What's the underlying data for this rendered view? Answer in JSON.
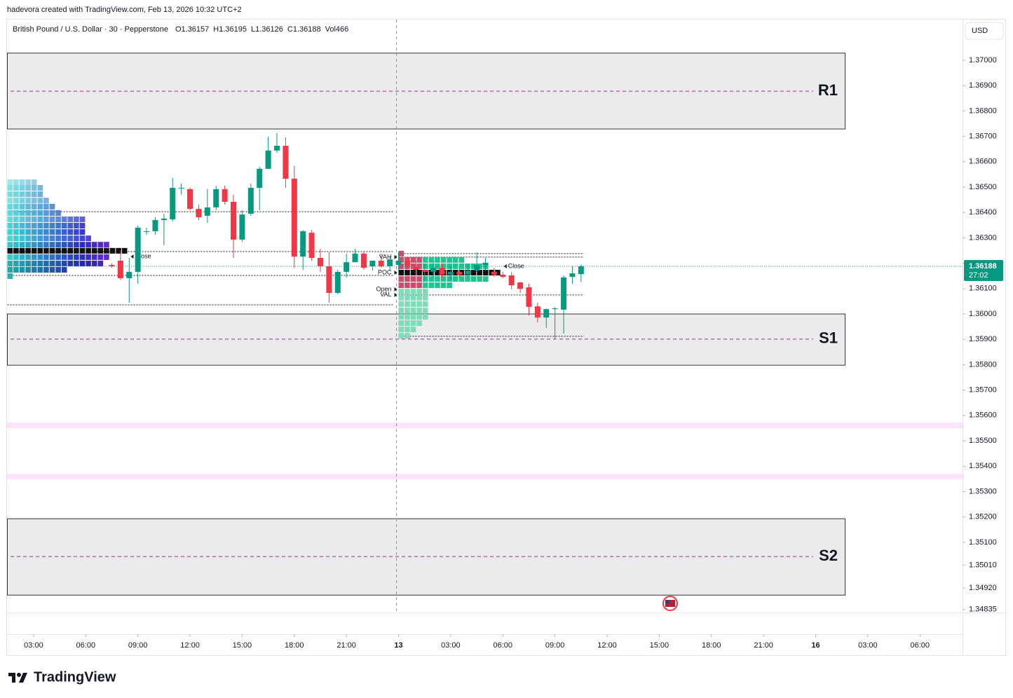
{
  "chart_data": {
    "type": "candlestick",
    "attribution": "hadevora created with TradingView.com, Feb 13, 2026 10:32 UTC+2",
    "title": "British Pound / U.S. Dollar · 30 · Pepperstone",
    "ohlc_labels": [
      "O",
      "H",
      "L",
      "C"
    ],
    "volume_label": "Vol",
    "volume": 466,
    "currency": "USD",
    "countdown": "27:02",
    "brand": "TradingView",
    "up_color": "#089981",
    "down_color": "#f23645",
    "x": [
      9,
      10,
      11,
      12,
      13,
      14,
      15,
      16,
      17,
      18,
      19,
      20,
      21,
      22,
      23,
      24,
      25,
      26,
      27,
      28,
      29,
      30,
      31,
      32,
      33,
      34,
      35,
      36,
      37,
      38,
      39,
      40,
      41,
      42,
      43,
      44,
      45,
      46,
      47,
      48,
      49,
      50,
      51,
      52,
      53,
      54,
      55,
      56,
      57,
      58,
      59,
      60,
      61,
      62,
      63
    ],
    "open": [
      1.36193,
      1.3621,
      1.36141,
      1.36166,
      1.36326,
      1.36326,
      1.3637,
      1.36373,
      1.36497,
      1.36492,
      1.36414,
      1.36387,
      1.3642,
      1.36492,
      1.36442,
      1.36293,
      1.36395,
      1.36497,
      1.36572,
      1.36644,
      1.36663,
      1.36533,
      1.36226,
      1.3632,
      1.36221,
      1.36188,
      1.36083,
      1.36166,
      1.36204,
      1.36238,
      1.36188,
      1.3621,
      1.36188,
      1.36193,
      1.3621,
      1.36188,
      1.36174,
      1.36166,
      1.36182,
      1.36155,
      1.36166,
      1.36155,
      1.36171,
      1.36193,
      1.36166,
      1.36155,
      1.36152,
      1.36124,
      1.36105,
      1.3603,
      1.35986,
      1.36019,
      1.36017,
      1.36146,
      1.36157
    ],
    "high": [
      1.36199,
      1.36249,
      1.36221,
      1.36348,
      1.3634,
      1.36381,
      1.36395,
      1.36536,
      1.36514,
      1.36497,
      1.36431,
      1.36492,
      1.36505,
      1.36505,
      1.3647,
      1.36409,
      1.36514,
      1.3658,
      1.36699,
      1.36713,
      1.36696,
      1.36583,
      1.36331,
      1.36331,
      1.36257,
      1.36243,
      1.36174,
      1.36238,
      1.36257,
      1.36249,
      1.3621,
      1.36238,
      1.36229,
      1.36243,
      1.36226,
      1.3621,
      1.36199,
      1.36202,
      1.36199,
      1.36188,
      1.36182,
      1.36193,
      1.36243,
      1.36221,
      1.36182,
      1.36166,
      1.36166,
      1.36127,
      1.36119,
      1.36044,
      1.36022,
      1.36028,
      1.36152,
      1.36188,
      1.36195
    ],
    "low": [
      1.36182,
      1.36133,
      1.36044,
      1.36119,
      1.36312,
      1.36312,
      1.36271,
      1.36365,
      1.3647,
      1.36409,
      1.3637,
      1.36359,
      1.36409,
      1.36431,
      1.36221,
      1.36284,
      1.36387,
      1.36409,
      1.36572,
      1.36635,
      1.36497,
      1.36182,
      1.36174,
      1.3621,
      1.36166,
      1.36044,
      1.36077,
      1.36144,
      1.36204,
      1.36174,
      1.36171,
      1.36182,
      1.36171,
      1.36174,
      1.36171,
      1.36155,
      1.36133,
      1.36146,
      1.36141,
      1.36133,
      1.36144,
      1.36146,
      1.36166,
      1.36171,
      1.36146,
      1.36141,
      1.36097,
      1.36083,
      1.35994,
      1.35967,
      1.35945,
      1.35901,
      1.35923,
      1.36119,
      1.36126
    ],
    "close": [
      1.36188,
      1.36141,
      1.36166,
      1.3634,
      1.36326,
      1.3637,
      1.36376,
      1.36497,
      1.36497,
      1.36414,
      1.36381,
      1.3642,
      1.36492,
      1.36442,
      1.36293,
      1.36392,
      1.36497,
      1.36572,
      1.36644,
      1.36663,
      1.36533,
      1.36226,
      1.36326,
      1.36221,
      1.36188,
      1.36083,
      1.36166,
      1.36204,
      1.36238,
      1.36182,
      1.3621,
      1.36188,
      1.36215,
      1.3621,
      1.36188,
      1.36174,
      1.36166,
      1.36182,
      1.36155,
      1.36166,
      1.36155,
      1.36171,
      1.36193,
      1.36202,
      1.36155,
      1.36146,
      1.36113,
      1.36099,
      1.36028,
      1.35986,
      1.36019,
      1.36022,
      1.36144,
      1.3616,
      1.36188
    ],
    "xlim": [
      -3.06,
      106.9
    ],
    "xticks": [
      {
        "value": 0,
        "label": "03:00"
      },
      {
        "value": 6,
        "label": "06:00"
      },
      {
        "value": 12,
        "label": "09:00"
      },
      {
        "value": 18,
        "label": "12:00"
      },
      {
        "value": 24,
        "label": "15:00"
      },
      {
        "value": 30,
        "label": "18:00"
      },
      {
        "value": 36,
        "label": "21:00"
      },
      {
        "value": 42,
        "label": "13"
      },
      {
        "value": 48,
        "label": "03:00"
      },
      {
        "value": 54,
        "label": "06:00"
      },
      {
        "value": 60,
        "label": "09:00"
      },
      {
        "value": 66,
        "label": "12:00"
      },
      {
        "value": 72,
        "label": "15:00"
      },
      {
        "value": 78,
        "label": "18:00"
      },
      {
        "value": 84,
        "label": "21:00"
      },
      {
        "value": 90,
        "label": "16"
      },
      {
        "value": 96,
        "label": "03:00"
      },
      {
        "value": 102,
        "label": "06:00"
      }
    ],
    "ylim": [
      1.34829,
      1.3716
    ],
    "yticks": [
      {
        "value": 1.37,
        "label": "1.37000"
      },
      {
        "value": 1.369,
        "label": "1.36900"
      },
      {
        "value": 1.368,
        "label": "1.36800"
      },
      {
        "value": 1.367,
        "label": "1.36700"
      },
      {
        "value": 1.366,
        "label": "1.36600"
      },
      {
        "value": 1.365,
        "label": "1.36500"
      },
      {
        "value": 1.364,
        "label": "1.36400"
      },
      {
        "value": 1.363,
        "label": "1.36300"
      },
      {
        "value": 1.362,
        "label": "1.36200"
      },
      {
        "value": 1.361,
        "label": "1.36100"
      },
      {
        "value": 1.36,
        "label": "1.36000"
      },
      {
        "value": 1.359,
        "label": "1.35900"
      },
      {
        "value": 1.358,
        "label": "1.35800"
      },
      {
        "value": 1.357,
        "label": "1.35700"
      },
      {
        "value": 1.356,
        "label": "1.35600"
      },
      {
        "value": 1.355,
        "label": "1.35500"
      },
      {
        "value": 1.354,
        "label": "1.35400"
      },
      {
        "value": 1.353,
        "label": "1.35300"
      },
      {
        "value": 1.352,
        "label": "1.35200"
      },
      {
        "value": 1.351,
        "label": "1.35100"
      },
      {
        "value": 1.3501,
        "label": "1.35010"
      },
      {
        "value": 1.3492,
        "label": "1.34920"
      },
      {
        "value": 1.34835,
        "label": "1.34835"
      }
    ],
    "zones": [
      {
        "label": "R1",
        "top": 1.37028,
        "bottom": 1.36729,
        "level": 1.36878
      },
      {
        "label": "S1",
        "top": 1.36,
        "bottom": 1.35798,
        "level": 1.35901
      },
      {
        "label": "S2",
        "top": 1.35193,
        "bottom": 1.34892,
        "level": 1.35044
      }
    ],
    "bands": [
      1.35561,
      1.35359
    ],
    "band_color": "#fbe3fb",
    "profiles": [
      {
        "x": -3.06,
        "levels": [
          1.36519,
          1.36497,
          1.36472,
          1.36447,
          1.36423,
          1.36398,
          1.36373,
          1.36348,
          1.36323,
          1.36298,
          1.36273,
          1.36249,
          1.36224,
          1.36199,
          1.36174,
          1.36149
        ],
        "counts": [
          5,
          6,
          6,
          7,
          8,
          9,
          13,
          13,
          13,
          14,
          17,
          20,
          17,
          16,
          10,
          1
        ],
        "lines": [
          1.36403,
          1.36246,
          1.36152,
          1.36036
        ],
        "markers": [
          {
            "label": "Close",
            "value": 1.36226
          }
        ]
      },
      {
        "x": 42,
        "levels": [
          1.36238,
          1.36213,
          1.36188,
          1.36163,
          1.36138,
          1.36113,
          1.36088,
          1.36064,
          1.36039,
          1.36014,
          1.35989,
          1.35964,
          1.35939,
          1.35914
        ],
        "counts": [
          1,
          11,
          15,
          17,
          15,
          9,
          5,
          5,
          5,
          5,
          5,
          4,
          3,
          2
        ],
        "lines": [
          1.36238,
          1.36224,
          1.36075,
          1.35912
        ],
        "markers": [
          {
            "label": "VAH",
            "value": 1.36224
          },
          {
            "label": "POC",
            "value": 1.36163
          },
          {
            "label": "Open",
            "value": 1.36097
          },
          {
            "label": "VAL",
            "value": 1.36075
          },
          {
            "label": "Close",
            "value": 1.36188
          }
        ]
      }
    ]
  }
}
